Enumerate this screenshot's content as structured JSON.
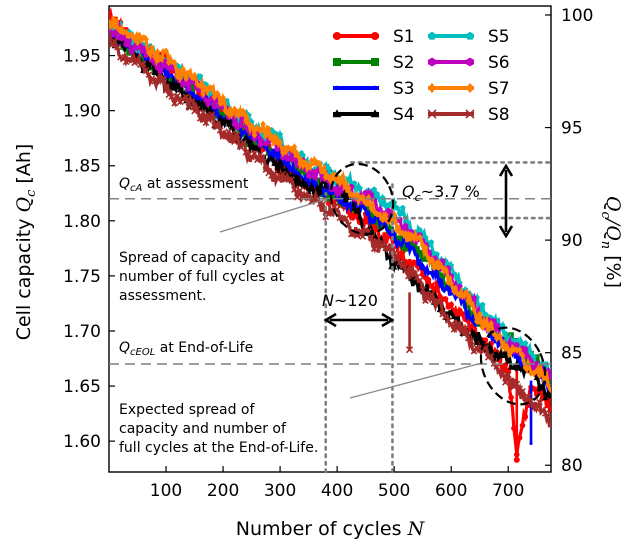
{
  "chart_data": {
    "type": "line",
    "xlabel": "Number of cycles",
    "xlabel_symbol": "N",
    "ylabel": "Cell capacity",
    "ylabel_symbol": "Q",
    "ylabel_sub": "c",
    "ylabel_unit": "[Ah]",
    "y2label": "Q",
    "y2label_sub1": "c",
    "y2label_sep": "/Q",
    "y2label_sub2": "n",
    "y2label_unit": "[%]",
    "xlim": [
      0,
      775
    ],
    "ylim": [
      1.572,
      1.995
    ],
    "y2lim": [
      79.7,
      100.4
    ],
    "grid": false,
    "legend_placement": "top-right",
    "xticks": [
      {
        "v": 100,
        "label": "100"
      },
      {
        "v": 200,
        "label": "200"
      },
      {
        "v": 300,
        "label": "300"
      },
      {
        "v": 400,
        "label": "400"
      },
      {
        "v": 500,
        "label": "500"
      },
      {
        "v": 600,
        "label": "600"
      },
      {
        "v": 700,
        "label": "700"
      }
    ],
    "yticks": [
      {
        "v": 1.6,
        "label": "1.60"
      },
      {
        "v": 1.65,
        "label": "1.65"
      },
      {
        "v": 1.7,
        "label": "1.70"
      },
      {
        "v": 1.75,
        "label": "1.75"
      },
      {
        "v": 1.8,
        "label": "1.80"
      },
      {
        "v": 1.85,
        "label": "1.85"
      },
      {
        "v": 1.9,
        "label": "1.90"
      },
      {
        "v": 1.95,
        "label": "1.95"
      }
    ],
    "y2ticks": [
      {
        "v": 80,
        "label": "80"
      },
      {
        "v": 85,
        "label": "85"
      },
      {
        "v": 90,
        "label": "90"
      },
      {
        "v": 95,
        "label": "95"
      },
      {
        "v": 100,
        "label": "100"
      }
    ],
    "series": [
      {
        "name": "S1",
        "color": "#ff0000",
        "marker": "circle",
        "x": [
          0,
          50,
          100,
          150,
          200,
          250,
          300,
          350,
          400,
          450,
          500,
          550,
          600,
          650,
          700,
          715,
          740,
          775
        ],
        "y": [
          1.985,
          1.962,
          1.943,
          1.918,
          1.898,
          1.878,
          1.852,
          1.832,
          1.818,
          1.798,
          1.778,
          1.752,
          1.722,
          1.695,
          1.664,
          1.59,
          1.652,
          1.63
        ],
        "spikes": [
          {
            "x": 715,
            "y1": 1.665,
            "y2": 1.583
          }
        ]
      },
      {
        "name": "S2",
        "color": "#008000",
        "marker": "square",
        "x": [
          0,
          50,
          100,
          150,
          200,
          250,
          300,
          350,
          400,
          450,
          500,
          550,
          600,
          650,
          700,
          740,
          775
        ],
        "y": [
          1.968,
          1.952,
          1.932,
          1.915,
          1.895,
          1.874,
          1.86,
          1.842,
          1.82,
          1.812,
          1.788,
          1.768,
          1.74,
          1.712,
          1.69,
          1.675,
          1.662
        ],
        "spikes": []
      },
      {
        "name": "S3",
        "color": "#0000ff",
        "marker": "point",
        "x": [
          0,
          50,
          100,
          150,
          200,
          250,
          300,
          350,
          400,
          450,
          500,
          550,
          600,
          650,
          700,
          740,
          775
        ],
        "y": [
          1.972,
          1.955,
          1.936,
          1.917,
          1.896,
          1.876,
          1.858,
          1.836,
          1.823,
          1.808,
          1.788,
          1.762,
          1.735,
          1.707,
          1.684,
          1.665,
          1.652
        ],
        "spikes": [
          {
            "x": 740,
            "y1": 1.655,
            "y2": 1.598
          }
        ]
      },
      {
        "name": "S4",
        "color": "#000000",
        "marker": "triangle",
        "x": [
          0,
          50,
          100,
          150,
          200,
          250,
          300,
          350,
          400,
          450,
          500,
          550,
          600,
          650,
          700,
          740,
          775
        ],
        "y": [
          1.97,
          1.948,
          1.926,
          1.908,
          1.888,
          1.868,
          1.846,
          1.829,
          1.838,
          1.795,
          1.762,
          1.74,
          1.713,
          1.69,
          1.674,
          1.66,
          1.64
        ],
        "spikes": []
      },
      {
        "name": "S5",
        "color": "#00bfbf",
        "marker": "pentagon",
        "x": [
          0,
          50,
          100,
          150,
          200,
          250,
          300,
          350,
          400,
          450,
          500,
          550,
          600,
          650,
          700,
          740,
          775
        ],
        "y": [
          1.978,
          1.962,
          1.944,
          1.928,
          1.906,
          1.887,
          1.873,
          1.85,
          1.84,
          1.825,
          1.812,
          1.785,
          1.755,
          1.722,
          1.695,
          1.678,
          1.662
        ],
        "spikes": []
      },
      {
        "name": "S6",
        "color": "#bf00bf",
        "marker": "hexagon",
        "x": [
          0,
          50,
          100,
          150,
          200,
          250,
          300,
          350,
          400,
          450,
          500,
          550,
          600,
          650,
          700,
          740,
          775
        ],
        "y": [
          1.975,
          1.958,
          1.94,
          1.922,
          1.902,
          1.882,
          1.866,
          1.846,
          1.832,
          1.82,
          1.802,
          1.778,
          1.748,
          1.716,
          1.69,
          1.672,
          1.656
        ],
        "spikes": []
      },
      {
        "name": "S7",
        "color": "#ff8000",
        "marker": "diamond",
        "x": [
          0,
          50,
          100,
          150,
          200,
          250,
          300,
          350,
          400,
          450,
          500,
          550,
          600,
          650,
          700,
          740,
          775
        ],
        "y": [
          1.982,
          1.965,
          1.946,
          1.928,
          1.908,
          1.888,
          1.87,
          1.852,
          1.838,
          1.815,
          1.798,
          1.776,
          1.745,
          1.713,
          1.683,
          1.668,
          1.65
        ],
        "spikes": []
      },
      {
        "name": "S8",
        "color": "#a52a2a",
        "marker": "x",
        "x": [
          0,
          50,
          100,
          150,
          200,
          250,
          300,
          350,
          400,
          450,
          500,
          550,
          600,
          650,
          700,
          740,
          775
        ],
        "y": [
          1.962,
          1.942,
          1.92,
          1.902,
          1.882,
          1.86,
          1.838,
          1.82,
          1.806,
          1.786,
          1.77,
          1.738,
          1.71,
          1.683,
          1.655,
          1.636,
          1.618
        ],
        "spikes": [
          {
            "x": 527,
            "y1": 1.735,
            "y2": 1.683
          }
        ]
      }
    ],
    "reference_lines": [
      {
        "kind": "h-dashed",
        "y": 1.82,
        "label": "at assessment",
        "symbol": "Q",
        "sub": "cA"
      },
      {
        "kind": "h-dashed",
        "y": 1.67,
        "label": "at End-of-Life",
        "symbol": "Q",
        "sub": "cEOL"
      }
    ],
    "dotted_lines": [
      {
        "kind": "v",
        "x": 380,
        "y_from": 1.572,
        "y_to": 1.825
      },
      {
        "kind": "v",
        "x": 497,
        "y_from": 1.572,
        "y_to": 1.835
      },
      {
        "kind": "h",
        "y": 1.853,
        "x_from": 425,
        "x_to": 775
      },
      {
        "kind": "h",
        "y": 1.8025,
        "x_from": 505,
        "x_to": 775
      }
    ],
    "annotations": {
      "delta_q": {
        "symbol": "Q",
        "sub": "c",
        "value": "~3.7 %",
        "x": 520,
        "y": 1.826
      },
      "delta_n": {
        "symbol": "N",
        "value": "~120",
        "x": 440,
        "y": 1.73
      },
      "assessment_text": [
        "Spread of capacity and",
        "number of full cycles at",
        "assessment."
      ],
      "eol_text": [
        "Expected spread of",
        "capacity and number of",
        "full cycles at the End-of-Life."
      ]
    }
  }
}
